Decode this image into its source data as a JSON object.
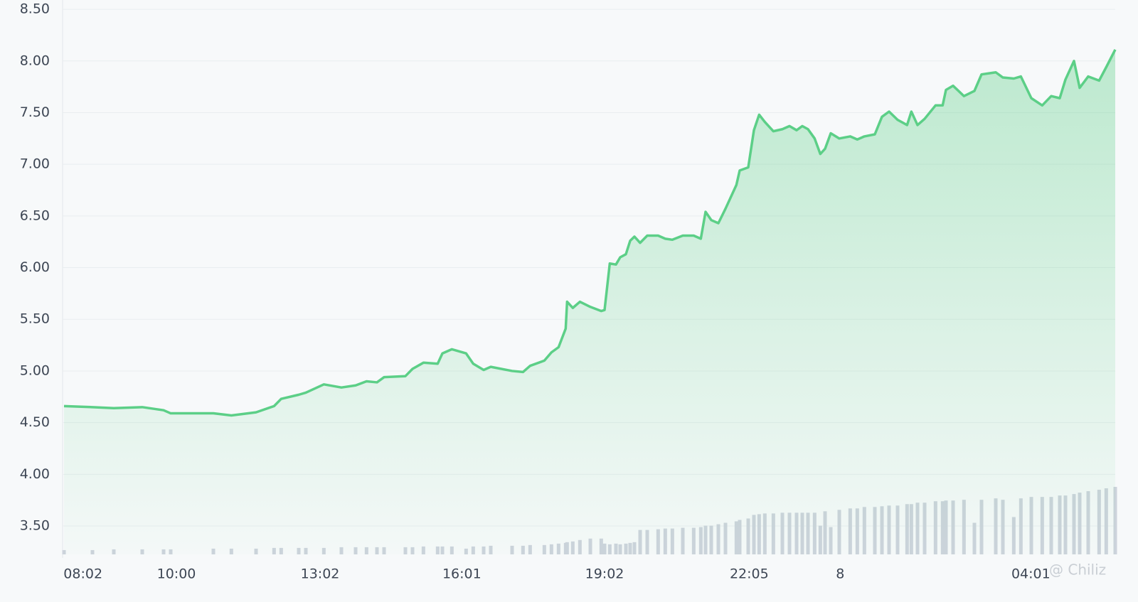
{
  "chart_data": {
    "type": "area",
    "x": [
      7.63,
      8.23,
      8.68,
      9.28,
      9.73,
      9.88,
      10.78,
      11.16,
      11.68,
      12.06,
      12.21,
      12.58,
      12.73,
      13.11,
      13.48,
      13.78,
      14.01,
      14.23,
      14.38,
      14.83,
      14.98,
      15.21,
      15.51,
      15.61,
      15.81,
      16.11,
      16.26,
      16.48,
      16.63,
      17.08,
      17.31,
      17.46,
      17.76,
      17.91,
      18.06,
      18.21,
      18.24,
      18.36,
      18.51,
      18.73,
      18.96,
      19.03,
      19.14,
      19.27,
      19.36,
      19.48,
      19.57,
      19.66,
      19.78,
      19.93,
      20.16,
      20.31,
      20.46,
      20.68,
      20.91,
      21.06,
      21.16,
      21.28,
      21.43,
      21.58,
      21.81,
      21.88,
      22.06,
      22.18,
      22.29,
      22.41,
      22.59,
      22.78,
      22.93,
      23.08,
      23.2,
      23.32,
      23.46,
      23.58,
      23.68,
      23.8,
      23.98,
      24.21,
      24.36,
      24.51,
      24.73,
      24.88,
      25.03,
      25.21,
      25.41,
      25.5,
      25.63,
      25.78,
      26.01,
      26.16,
      26.23,
      26.38,
      26.61,
      26.83,
      26.98,
      27.28,
      27.43,
      27.66,
      27.81,
      28.03,
      28.26,
      28.45,
      28.63,
      28.75,
      28.93,
      29.05,
      29.23,
      29.46,
      29.61,
      29.8
    ],
    "values": [
      4.66,
      4.65,
      4.64,
      4.65,
      4.62,
      4.59,
      4.59,
      4.57,
      4.6,
      4.66,
      4.73,
      4.77,
      4.79,
      4.87,
      4.84,
      4.86,
      4.9,
      4.89,
      4.94,
      4.95,
      5.02,
      5.08,
      5.07,
      5.17,
      5.21,
      5.17,
      5.07,
      5.01,
      5.04,
      5.0,
      4.99,
      5.05,
      5.1,
      5.18,
      5.23,
      5.41,
      5.67,
      5.61,
      5.67,
      5.62,
      5.58,
      5.59,
      6.04,
      6.03,
      6.1,
      6.13,
      6.26,
      6.3,
      6.24,
      6.31,
      6.31,
      6.28,
      6.27,
      6.31,
      6.31,
      6.28,
      6.54,
      6.46,
      6.43,
      6.57,
      6.8,
      6.94,
      6.97,
      7.33,
      7.48,
      7.41,
      7.32,
      7.34,
      7.37,
      7.33,
      7.37,
      7.34,
      7.25,
      7.1,
      7.15,
      7.3,
      7.25,
      7.27,
      7.24,
      7.27,
      7.29,
      7.46,
      7.51,
      7.43,
      7.38,
      7.51,
      7.38,
      7.44,
      7.57,
      7.57,
      7.72,
      7.76,
      7.66,
      7.71,
      7.87,
      7.89,
      7.84,
      7.83,
      7.85,
      7.64,
      7.57,
      7.66,
      7.64,
      7.82,
      8.0,
      7.74,
      7.85,
      7.81,
      7.94,
      8.11
    ],
    "volume": [
      6,
      6,
      7,
      7,
      7,
      7,
      8,
      8,
      8,
      9,
      9,
      9,
      9,
      9,
      10,
      10,
      10,
      10,
      10,
      10,
      10,
      11,
      11,
      11,
      11,
      8,
      11,
      11,
      12,
      12,
      12,
      13,
      13,
      14,
      15,
      16,
      17,
      18,
      20,
      22,
      22,
      15,
      14,
      15,
      14,
      15,
      16,
      17,
      34,
      34,
      35,
      36,
      36,
      37,
      37,
      38,
      40,
      40,
      42,
      44,
      46,
      48,
      50,
      55,
      56,
      57,
      57,
      58,
      58,
      58,
      58,
      58,
      58,
      40,
      60,
      38,
      62,
      64,
      64,
      66,
      66,
      67,
      68,
      68,
      70,
      70,
      72,
      72,
      74,
      74,
      75,
      75,
      76,
      44,
      76,
      78,
      76,
      52,
      78,
      80,
      80,
      80,
      82,
      82,
      84,
      86,
      88,
      90,
      92,
      94
    ],
    "yticks": [
      {
        "value": 3.5,
        "label": "3.50"
      },
      {
        "value": 4,
        "label": "4.00"
      },
      {
        "value": 4.5,
        "label": "4.50"
      },
      {
        "value": 5,
        "label": "5.00"
      },
      {
        "value": 5.5,
        "label": "5.50"
      },
      {
        "value": 6,
        "label": "6.00"
      },
      {
        "value": 6.5,
        "label": "6.50"
      },
      {
        "value": 7,
        "label": "7.00"
      },
      {
        "value": 7.5,
        "label": "7.50"
      },
      {
        "value": 8,
        "label": "8.00"
      },
      {
        "value": 8.5,
        "label": "8.50"
      }
    ],
    "ylim": [
      3.225,
      8.59
    ],
    "xlim": [
      7.6,
      29.8
    ],
    "xticks": [
      {
        "value": 8.03,
        "label": "08:02"
      },
      {
        "value": 10,
        "label": "10:00"
      },
      {
        "value": 13.03,
        "label": "13:02"
      },
      {
        "value": 16.02,
        "label": "16:01"
      },
      {
        "value": 19.03,
        "label": "19:02"
      },
      {
        "value": 22.08,
        "label": "22:05"
      },
      {
        "value": 24,
        "label": "8"
      },
      {
        "value": 28.02,
        "label": "04:01"
      }
    ],
    "color": "#5ccf87",
    "volume_color": "#cdd3dc",
    "grid": true,
    "watermark": "@ Chiliz"
  }
}
